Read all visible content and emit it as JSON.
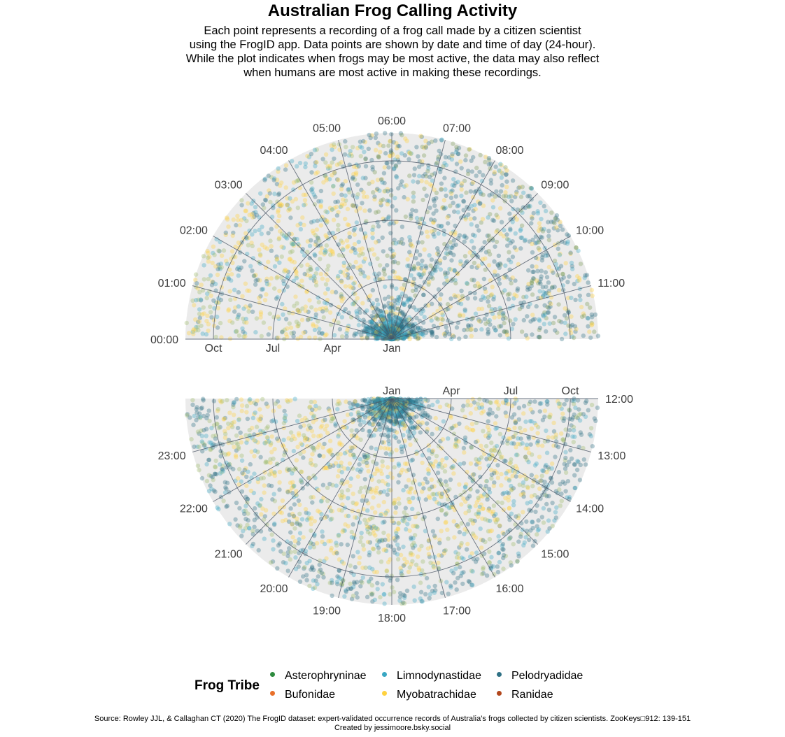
{
  "chart_data": {
    "type": "scatter",
    "coordinates": "polar (radius = date of year, angle = time of day)",
    "title": "Australian Frog Calling Activity",
    "subtitle_lines": [
      "Each point represents a recording of a frog call made by a citizen scientist",
      "using the FrogID app. Data points are shown by date and time of day (24-hour).",
      "While the plot indicates when frogs may be most active, the data may also reflect",
      "when humans are most active in making these recordings."
    ],
    "panels": [
      {
        "name": "00:00-11:59",
        "hour_labels": [
          "00:00",
          "01:00",
          "02:00",
          "03:00",
          "04:00",
          "05:00",
          "06:00",
          "07:00",
          "08:00",
          "09:00",
          "10:00",
          "11:00"
        ],
        "month_labels": [
          "Jan",
          "Apr",
          "Jul",
          "Oct"
        ],
        "hours_range": [
          0,
          12
        ]
      },
      {
        "name": "12:00-23:59",
        "hour_labels": [
          "12:00",
          "13:00",
          "14:00",
          "15:00",
          "16:00",
          "17:00",
          "18:00",
          "19:00",
          "20:00",
          "21:00",
          "22:00",
          "23:00"
        ],
        "month_labels": [
          "Jan",
          "Apr",
          "Jul",
          "Oct"
        ],
        "hours_range": [
          12,
          24
        ]
      }
    ],
    "radius_axis": {
      "variable": "date",
      "ticks": [
        "Jan",
        "Apr",
        "Jul",
        "Oct"
      ]
    },
    "angle_axis": {
      "variable": "time of day (24-hour)"
    },
    "grid": true,
    "point_alpha": 0.35,
    "legend": {
      "title": "Frog Tribe",
      "position": "bottom",
      "entries": [
        {
          "name": "Asterophryninae",
          "color": "#2e8b3e"
        },
        {
          "name": "Bufonidae",
          "color": "#e8702a"
        },
        {
          "name": "Limnodynastidae",
          "color": "#3aa7c3"
        },
        {
          "name": "Myobatrachidae",
          "color": "#ffd23f"
        },
        {
          "name": "Pelodryadidae",
          "color": "#2f7185"
        },
        {
          "name": "Ranidae",
          "color": "#b2471c"
        }
      ]
    }
  },
  "caption": {
    "line1": "Source: Rowley JJL, & Callaghan CT (2020) The FrogID dataset: expert-validated occurrence records of Australia’s frogs collected by citizen scientists. ZooKeys□912: 139-151",
    "line2": "Created by jessimoore.bsky.social"
  },
  "colors": {
    "panel_background": "#ebebeb",
    "grid_line": "#4a5565",
    "axis_text": "#3d3d3d"
  }
}
